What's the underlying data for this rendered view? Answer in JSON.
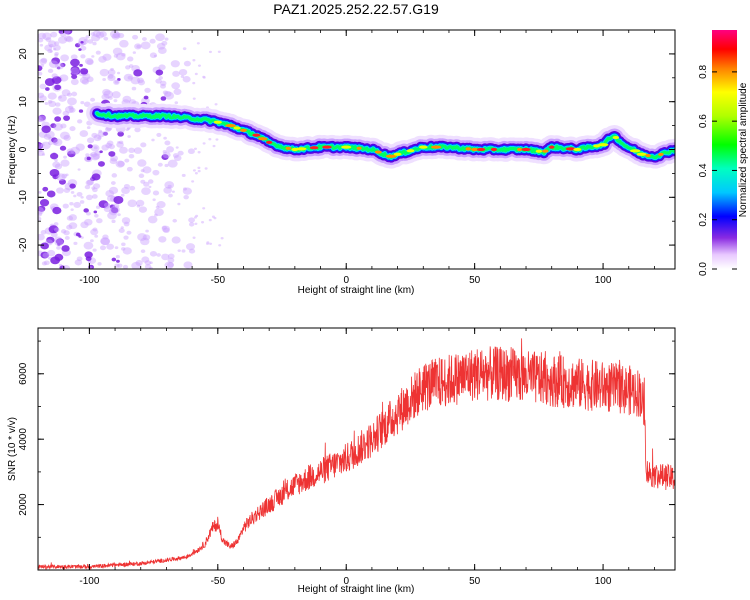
{
  "title": "PAZ1.2025.252.22.57.G19",
  "chart_data": [
    {
      "type": "heatmap",
      "name": "spectrogram",
      "xlabel": "Height of straight line (km)",
      "ylabel": "Frequency (Hz)",
      "xlim": [
        -120,
        128
      ],
      "ylim": [
        -25,
        25
      ],
      "xticks": [
        -100,
        -50,
        0,
        50,
        100
      ],
      "yticks": [
        -20,
        -10,
        0,
        10,
        20
      ],
      "colorbar": {
        "label": "Normalized spectral amplitude",
        "range": [
          0,
          0.97
        ],
        "ticks": [
          0.0,
          0.2,
          0.4,
          0.6,
          0.8
        ]
      },
      "ridge_x": [
        -97,
        -90,
        -80,
        -70,
        -60,
        -52,
        -45,
        -40,
        -35,
        -30,
        -25,
        -20,
        -10,
        0,
        10,
        17,
        20,
        30,
        40,
        50,
        60,
        70,
        77,
        80,
        90,
        100,
        104,
        108,
        115,
        120,
        128
      ],
      "ridge_y": [
        7.5,
        7,
        7,
        7,
        6.5,
        6,
        5,
        4,
        3,
        1.5,
        0.5,
        0,
        0.5,
        0.5,
        0,
        -1.5,
        -1,
        0.5,
        0.5,
        0,
        0,
        0,
        -0.5,
        0.5,
        0,
        1,
        3,
        1,
        -1,
        -1.5,
        0
      ],
      "noise_region_x": [
        -120,
        -60
      ]
    },
    {
      "type": "line",
      "name": "snr",
      "xlabel": "Height of straight line (km)",
      "ylabel": "SNR (10 * v/v)",
      "xlim": [
        -120,
        128
      ],
      "ylim": [
        0,
        7400
      ],
      "xticks": [
        -100,
        -50,
        0,
        50,
        100
      ],
      "yticks": [
        2000,
        4000,
        6000
      ],
      "color": "#ee3333",
      "x": [
        -120,
        -100,
        -80,
        -70,
        -62,
        -58,
        -55,
        -52,
        -50,
        -48,
        -45,
        -42,
        -40,
        -35,
        -30,
        -25,
        -20,
        -15,
        -10,
        -5,
        0,
        5,
        10,
        15,
        20,
        25,
        30,
        40,
        50,
        60,
        70,
        80,
        90,
        100,
        110,
        115,
        116,
        117,
        120,
        128
      ],
      "y": [
        100,
        100,
        200,
        300,
        400,
        600,
        800,
        1300,
        1400,
        900,
        700,
        900,
        1300,
        1700,
        2000,
        2300,
        2600,
        2800,
        3000,
        3200,
        3400,
        3700,
        4000,
        4400,
        4800,
        5200,
        5600,
        5800,
        6000,
        6000,
        5900,
        5800,
        5700,
        5600,
        5500,
        5400,
        4800,
        3000,
        2900,
        2800
      ]
    }
  ]
}
